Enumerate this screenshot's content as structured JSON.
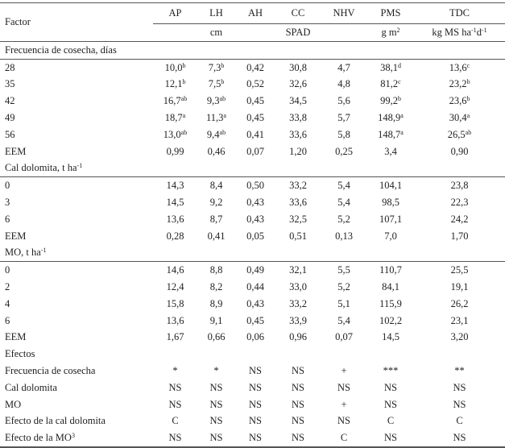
{
  "columns": [
    "AP",
    "LH",
    "AH",
    "CC",
    "NHV",
    "PMS",
    "TDC"
  ],
  "factor_label": "Factor",
  "units": {
    "LH": "cm",
    "CC": "SPAD",
    "PMS": "g m",
    "PMS_sup": "2",
    "TDC": "kg MS ha",
    "TDC_sup1": "-1",
    "TDC_mid": "d",
    "TDC_sup2": "-1"
  },
  "sections": [
    {
      "title": "Frecuencia de cosecha, días",
      "title_sup": "",
      "rows": [
        {
          "label": "28",
          "cells": [
            [
              "10,0",
              "b"
            ],
            [
              "7,3",
              "b"
            ],
            [
              "0,42",
              ""
            ],
            [
              "30,8",
              ""
            ],
            [
              "4,7",
              ""
            ],
            [
              "38,1",
              "d"
            ],
            [
              "13,6",
              "c"
            ]
          ]
        },
        {
          "label": "35",
          "cells": [
            [
              "12,1",
              "b"
            ],
            [
              "7,5",
              "b"
            ],
            [
              "0,52",
              ""
            ],
            [
              "32,6",
              ""
            ],
            [
              "4,8",
              ""
            ],
            [
              "81,2",
              "c"
            ],
            [
              "23,2",
              "b"
            ]
          ]
        },
        {
          "label": "42",
          "cells": [
            [
              "16,7",
              "ab"
            ],
            [
              "9,3",
              "ab"
            ],
            [
              "0,45",
              ""
            ],
            [
              "34,5",
              ""
            ],
            [
              "5,6",
              ""
            ],
            [
              "99,2",
              "b"
            ],
            [
              "23,6",
              "b"
            ]
          ]
        },
        {
          "label": "49",
          "cells": [
            [
              "18,7",
              "a"
            ],
            [
              "11,3",
              "a"
            ],
            [
              "0,45",
              ""
            ],
            [
              "33,8",
              ""
            ],
            [
              "5,7",
              ""
            ],
            [
              "148,9",
              "a"
            ],
            [
              "30,4",
              "a"
            ]
          ]
        },
        {
          "label": "56",
          "cells": [
            [
              "13,0",
              "ab"
            ],
            [
              "9,4",
              "ab"
            ],
            [
              "0,41",
              ""
            ],
            [
              "33,6",
              ""
            ],
            [
              "5,8",
              ""
            ],
            [
              "148,7",
              "a"
            ],
            [
              "26,5",
              "ab"
            ]
          ]
        },
        {
          "label": "EEM",
          "cells": [
            [
              "0,99",
              ""
            ],
            [
              "0,46",
              ""
            ],
            [
              "0,07",
              ""
            ],
            [
              "1,20",
              ""
            ],
            [
              "0,25",
              ""
            ],
            [
              "3,4",
              ""
            ],
            [
              "0,90",
              ""
            ]
          ]
        }
      ]
    },
    {
      "title": "Cal dolomita, t ha",
      "title_sup": "-1",
      "rows": [
        {
          "label": "0",
          "cells": [
            [
              "14,3",
              ""
            ],
            [
              "8,4",
              ""
            ],
            [
              "0,50",
              ""
            ],
            [
              "33,2",
              ""
            ],
            [
              "5,4",
              ""
            ],
            [
              "104,1",
              ""
            ],
            [
              "23,8",
              ""
            ]
          ]
        },
        {
          "label": "3",
          "cells": [
            [
              "14,5",
              ""
            ],
            [
              "9,2",
              ""
            ],
            [
              "0,43",
              ""
            ],
            [
              "33,6",
              ""
            ],
            [
              "5,4",
              ""
            ],
            [
              "98,5",
              ""
            ],
            [
              "22,3",
              ""
            ]
          ]
        },
        {
          "label": "6",
          "cells": [
            [
              "13,6",
              ""
            ],
            [
              "8,7",
              ""
            ],
            [
              "0,43",
              ""
            ],
            [
              "32,5",
              ""
            ],
            [
              "5,2",
              ""
            ],
            [
              "107,1",
              ""
            ],
            [
              "24,2",
              ""
            ]
          ]
        },
        {
          "label": "EEM",
          "cells": [
            [
              "0,28",
              ""
            ],
            [
              "0,41",
              ""
            ],
            [
              "0,05",
              ""
            ],
            [
              "0,51",
              ""
            ],
            [
              "0,13",
              ""
            ],
            [
              "7,0",
              ""
            ],
            [
              "1,70",
              ""
            ]
          ]
        }
      ]
    },
    {
      "title": "MO, t ha",
      "title_sup": "-1",
      "rows": [
        {
          "label": "0",
          "cells": [
            [
              "14,6",
              ""
            ],
            [
              "8,8",
              ""
            ],
            [
              "0,49",
              ""
            ],
            [
              "32,1",
              ""
            ],
            [
              "5,5",
              ""
            ],
            [
              "110,7",
              ""
            ],
            [
              "25,5",
              ""
            ]
          ]
        },
        {
          "label": "2",
          "cells": [
            [
              "12,4",
              ""
            ],
            [
              "8,2",
              ""
            ],
            [
              "0,44",
              ""
            ],
            [
              "33,0",
              ""
            ],
            [
              "5,2",
              ""
            ],
            [
              "84,1",
              ""
            ],
            [
              "19,1",
              ""
            ]
          ]
        },
        {
          "label": "4",
          "cells": [
            [
              "15,8",
              ""
            ],
            [
              "8,9",
              ""
            ],
            [
              "0,43",
              ""
            ],
            [
              "33,2",
              ""
            ],
            [
              "5,1",
              ""
            ],
            [
              "115,9",
              ""
            ],
            [
              "26,2",
              ""
            ]
          ]
        },
        {
          "label": "6",
          "cells": [
            [
              "13,6",
              ""
            ],
            [
              "9,1",
              ""
            ],
            [
              "0,45",
              ""
            ],
            [
              "33,9",
              ""
            ],
            [
              "5,4",
              ""
            ],
            [
              "102,2",
              ""
            ],
            [
              "23,1",
              ""
            ]
          ]
        },
        {
          "label": "EEM",
          "cells": [
            [
              "1,67",
              ""
            ],
            [
              "0,66",
              ""
            ],
            [
              "0,06",
              ""
            ],
            [
              "0,96",
              ""
            ],
            [
              "0,07",
              ""
            ],
            [
              "14,5",
              ""
            ],
            [
              "3,20",
              ""
            ]
          ]
        }
      ]
    },
    {
      "title": "Efectos",
      "title_sup": "",
      "rows": [
        {
          "label": "Frecuencia de cosecha",
          "cells": [
            [
              "*",
              ""
            ],
            [
              "*",
              ""
            ],
            [
              "NS",
              ""
            ],
            [
              "NS",
              ""
            ],
            [
              "+",
              ""
            ],
            [
              "***",
              ""
            ],
            [
              "**",
              ""
            ]
          ]
        },
        {
          "label": "Cal dolomita",
          "cells": [
            [
              "NS",
              ""
            ],
            [
              "NS",
              ""
            ],
            [
              "NS",
              ""
            ],
            [
              "NS",
              ""
            ],
            [
              "NS",
              ""
            ],
            [
              "NS",
              ""
            ],
            [
              "NS",
              ""
            ]
          ]
        },
        {
          "label": "MO",
          "cells": [
            [
              "NS",
              ""
            ],
            [
              "NS",
              ""
            ],
            [
              "NS",
              ""
            ],
            [
              "NS",
              ""
            ],
            [
              "+",
              ""
            ],
            [
              "NS",
              ""
            ],
            [
              "NS",
              ""
            ]
          ]
        },
        {
          "label": "Efecto de la cal dolomita",
          "cells": [
            [
              "C",
              ""
            ],
            [
              "NS",
              ""
            ],
            [
              "NS",
              ""
            ],
            [
              "NS",
              ""
            ],
            [
              "NS",
              ""
            ],
            [
              "C",
              ""
            ],
            [
              "C",
              ""
            ]
          ]
        },
        {
          "label": "Efecto de la MO",
          "label_sup": "3",
          "cells": [
            [
              "NS",
              ""
            ],
            [
              "NS",
              ""
            ],
            [
              "NS",
              ""
            ],
            [
              "NS",
              ""
            ],
            [
              "C",
              ""
            ],
            [
              "NS",
              ""
            ],
            [
              "NS",
              ""
            ]
          ]
        }
      ]
    }
  ]
}
